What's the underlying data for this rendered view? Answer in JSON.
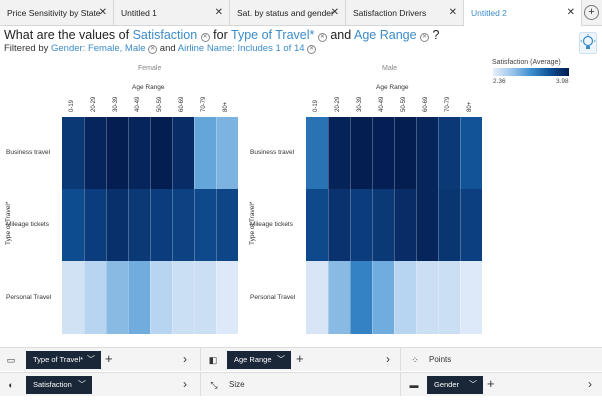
{
  "tabs": [
    {
      "label": "Price Sensitivity by State",
      "active": false
    },
    {
      "label": "Untitled 1",
      "active": false
    },
    {
      "label": "Sat. by status and gender",
      "active": false
    },
    {
      "label": "Satisfaction Drivers",
      "active": false
    },
    {
      "label": "Untitled 2",
      "active": true
    }
  ],
  "header": {
    "q_prefix": "What are the values of",
    "measure": "Satisfaction",
    "for_word": "for",
    "dim1": "Type of Travel*",
    "and_word": "and",
    "dim2": "Age Range",
    "q_suffix": "?",
    "filter_prefix": "Filtered by",
    "filter1": "Gender: Female, Male",
    "filter_and": "and",
    "filter2": "Airline Name: Includes 1 of 14"
  },
  "legend": {
    "title": "Satisfaction (Average)",
    "min": "2.36",
    "max": "3.98"
  },
  "shelves": {
    "rows_label": "Type of Travel*",
    "columns_label": "Age Range",
    "points_label": "Points",
    "color_label": "Satisfaction",
    "size_label": "Size",
    "facet_label": "Gender"
  },
  "chart_data": {
    "type": "heatmap",
    "title": "Satisfaction (Average) by Type of Travel* and Age Range, faceted by Gender",
    "xlabel": "Age Range",
    "ylabel": "Type of Travel*",
    "x": [
      "0-19",
      "20-29",
      "30-39",
      "40-49",
      "50-59",
      "60-69",
      "70-79",
      "80+"
    ],
    "y": [
      "Business travel",
      "Mileage tickets",
      "Personal Travel"
    ],
    "value_range": [
      2.36,
      3.98
    ],
    "facets": [
      {
        "name": "Female",
        "values": [
          [
            3.75,
            3.9,
            3.96,
            3.9,
            3.96,
            3.85,
            3.0,
            2.9
          ],
          [
            3.6,
            3.72,
            3.82,
            3.75,
            3.72,
            3.68,
            3.62,
            3.65
          ],
          [
            2.48,
            2.62,
            2.85,
            2.95,
            2.62,
            2.52,
            2.52,
            2.42
          ]
        ]
      },
      {
        "name": "Male",
        "values": [
          [
            3.35,
            3.92,
            3.96,
            3.95,
            3.96,
            3.9,
            3.75,
            3.55
          ],
          [
            3.62,
            3.8,
            3.72,
            3.75,
            3.85,
            3.9,
            3.78,
            3.7
          ],
          [
            2.45,
            2.85,
            3.25,
            2.95,
            2.62,
            2.52,
            2.52,
            2.42
          ]
        ]
      }
    ]
  }
}
